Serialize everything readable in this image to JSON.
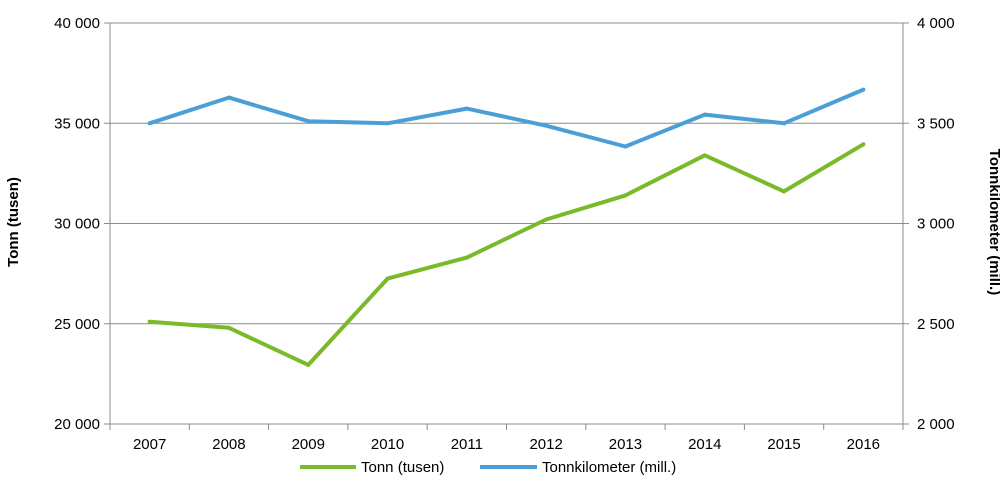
{
  "chart_data": {
    "type": "line",
    "categories": [
      "2007",
      "2008",
      "2009",
      "2010",
      "2011",
      "2012",
      "2013",
      "2014",
      "2015",
      "2016"
    ],
    "series": [
      {
        "name": "Tonn (tusen)",
        "axis": "left",
        "color": "#7ab929",
        "values": [
          25100,
          24800,
          22950,
          27250,
          28300,
          30200,
          31400,
          33400,
          31600,
          33950
        ]
      },
      {
        "name": "Tonnkilometer (mill.)",
        "axis": "right",
        "color": "#4aa0d6",
        "values": [
          3500,
          3628,
          3510,
          3500,
          3573,
          3488,
          3384,
          3543,
          3500,
          3668
        ]
      }
    ],
    "ylabel": "Tonn (tusen)",
    "y2label": "Tonnkilometer (mill.)",
    "ylim": [
      20000,
      40000
    ],
    "y2lim": [
      2000,
      4000
    ],
    "yticks": [
      "20 000",
      "25 000",
      "30 000",
      "35 000",
      "40 000"
    ],
    "y2ticks": [
      "2 000",
      "2 500",
      "3 000",
      "3 500",
      "4 000"
    ],
    "grid": true,
    "legend": "bottom"
  }
}
